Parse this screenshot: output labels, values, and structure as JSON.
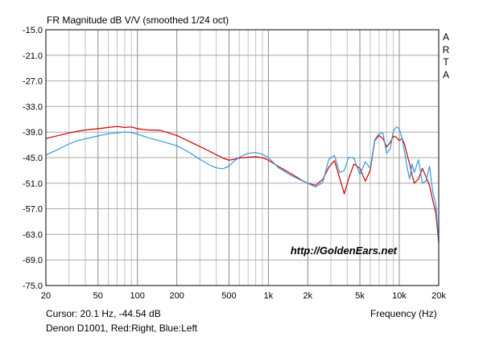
{
  "chart_data": {
    "type": "line",
    "title": "FR Magnitude dB V/V (smoothed 1/24 oct)",
    "side_label": [
      "A",
      "R",
      "T",
      "A"
    ],
    "xlabel": "Frequency (Hz)",
    "ylabel": "",
    "x_scale": "log",
    "xlim": [
      20,
      20000
    ],
    "ylim": [
      -75.0,
      -15.0
    ],
    "x_ticks": [
      20,
      50,
      100,
      200,
      500,
      1000,
      2000,
      5000,
      10000,
      20000
    ],
    "x_tick_labels": [
      "20",
      "50",
      "100",
      "200",
      "500",
      "1k",
      "2k",
      "5k",
      "10k",
      "20k"
    ],
    "y_ticks": [
      -15.0,
      -21.0,
      -27.0,
      -33.0,
      -39.0,
      -45.0,
      -51.0,
      -57.0,
      -63.0,
      -69.0,
      -75.0
    ],
    "y_tick_labels": [
      "-15.0",
      "-21.0",
      "-27.0",
      "-33.0",
      "-39.0",
      "-45.0",
      "-51.0",
      "-57.0",
      "-63.0",
      "-69.0",
      "-75.0"
    ],
    "grid": true,
    "cursor_text": "Cursor: 20.1 Hz, -44.54 dB",
    "info_text": "Denon D1001, Red:Right, Blue:Left",
    "watermark": "http://GoldenEars.net",
    "series": [
      {
        "name": "Right",
        "color": "#cc0000",
        "x": [
          20,
          25,
          30,
          35,
          40,
          50,
          60,
          70,
          80,
          90,
          100,
          120,
          150,
          200,
          250,
          300,
          350,
          400,
          450,
          500,
          550,
          600,
          700,
          800,
          900,
          1000,
          1200,
          1500,
          1800,
          2000,
          2300,
          2600,
          2900,
          3200,
          3500,
          3800,
          4100,
          4500,
          5000,
          5500,
          6000,
          6500,
          7000,
          7500,
          8000,
          8500,
          9000,
          9500,
          10000,
          10500,
          11000,
          11500,
          12000,
          12500,
          13000,
          14000,
          15000,
          16000,
          17000,
          18000,
          19000,
          20000
        ],
        "y": [
          -40.5,
          -39.8,
          -39.2,
          -38.8,
          -38.5,
          -38.2,
          -37.9,
          -37.7,
          -37.9,
          -37.8,
          -38.2,
          -38.5,
          -38.6,
          -39.8,
          -41.2,
          -42.4,
          -43.4,
          -44.3,
          -45.1,
          -45.6,
          -45.4,
          -45.1,
          -44.9,
          -44.8,
          -45.0,
          -45.6,
          -47.1,
          -48.8,
          -50.3,
          -51.0,
          -51.5,
          -50.1,
          -47.2,
          -45.7,
          -49.8,
          -53.5,
          -50.0,
          -46.5,
          -47.5,
          -50.5,
          -48.0,
          -41.0,
          -39.8,
          -40.5,
          -42.5,
          -41.5,
          -40.0,
          -40.2,
          -41.0,
          -40.5,
          -42.0,
          -44.5,
          -46.5,
          -49.0,
          -51.0,
          -50.0,
          -47.5,
          -49.5,
          -51.5,
          -55.0,
          -58.0,
          -65.0
        ]
      },
      {
        "name": "Left",
        "color": "#3399dd",
        "x": [
          20,
          25,
          30,
          35,
          40,
          50,
          60,
          70,
          80,
          90,
          100,
          120,
          150,
          200,
          250,
          300,
          350,
          400,
          450,
          500,
          550,
          600,
          700,
          800,
          900,
          1000,
          1200,
          1500,
          1800,
          2000,
          2300,
          2600,
          2900,
          3200,
          3500,
          3800,
          4100,
          4500,
          5000,
          5500,
          6000,
          6500,
          7000,
          7500,
          8000,
          8500,
          9000,
          9500,
          10000,
          10500,
          11000,
          11500,
          12000,
          12500,
          13000,
          14000,
          15000,
          16000,
          17000,
          18000,
          19000,
          20000
        ],
        "y": [
          -44.4,
          -43.0,
          -41.8,
          -41.0,
          -40.6,
          -39.9,
          -39.4,
          -39.2,
          -39.0,
          -39.1,
          -39.5,
          -40.3,
          -41.1,
          -42.2,
          -43.8,
          -45.4,
          -46.6,
          -47.4,
          -47.6,
          -47.0,
          -45.8,
          -44.9,
          -44.0,
          -43.8,
          -44.2,
          -45.0,
          -47.4,
          -49.2,
          -50.4,
          -51.0,
          -51.9,
          -50.8,
          -45.3,
          -44.5,
          -48.5,
          -48.0,
          -44.9,
          -45.1,
          -49.0,
          -46.0,
          -47.5,
          -40.8,
          -39.4,
          -39.2,
          -44.0,
          -43.0,
          -38.8,
          -37.8,
          -38.2,
          -40.5,
          -44.0,
          -47.5,
          -50.0,
          -46.5,
          -48.5,
          -45.5,
          -51.0,
          -50.5,
          -47.0,
          -53.0,
          -56.0,
          -64.5
        ]
      }
    ]
  }
}
